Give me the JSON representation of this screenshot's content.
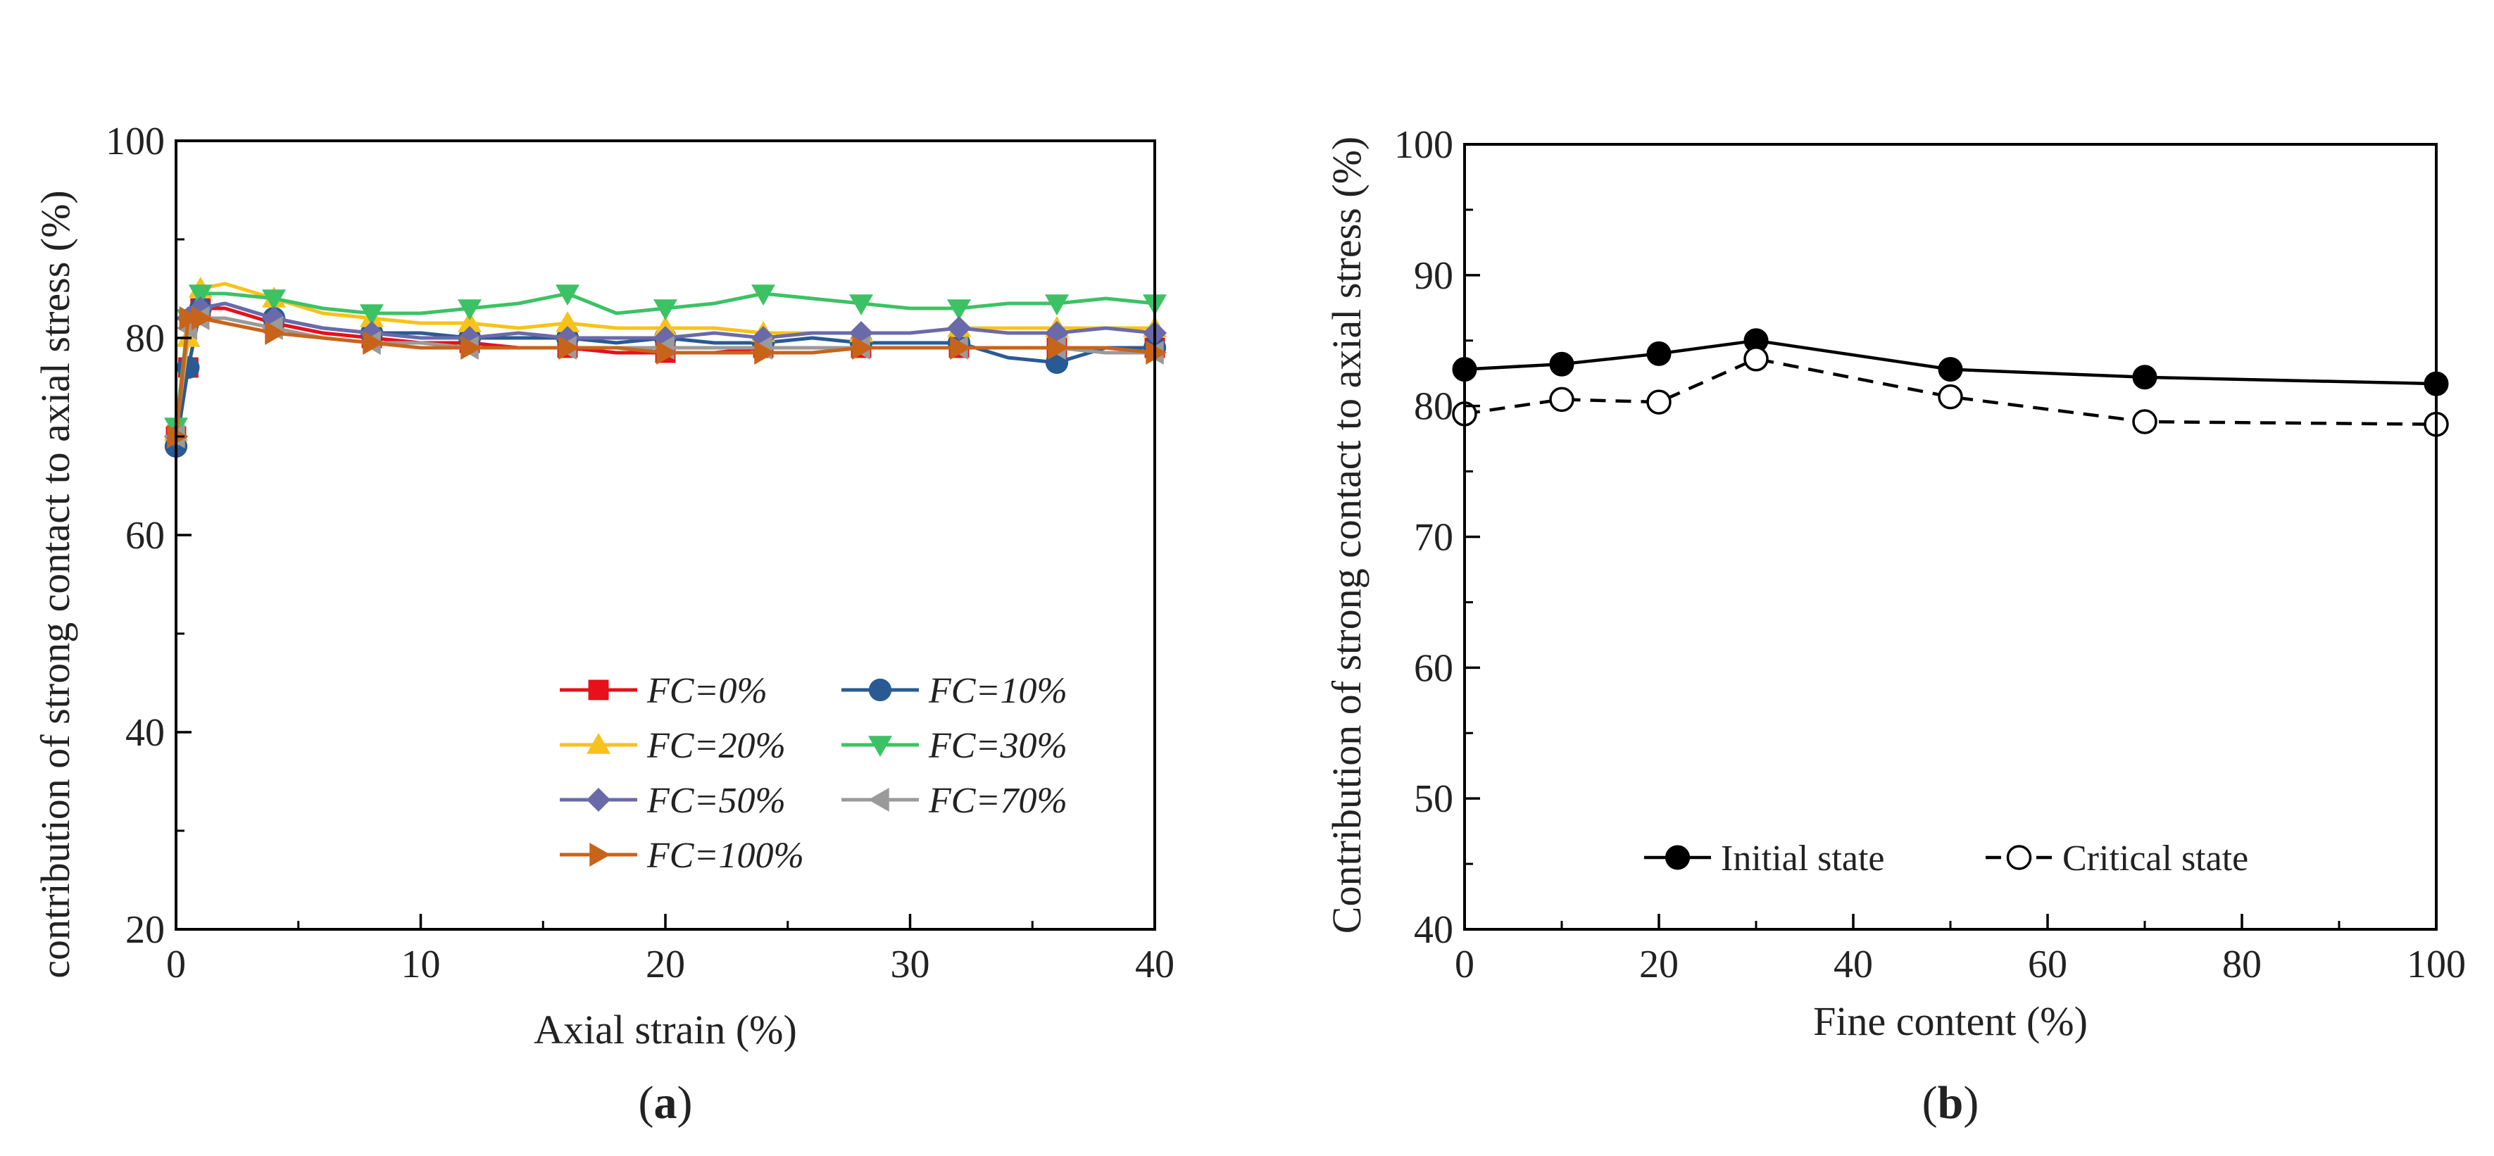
{
  "chart_data": [
    {
      "type": "line",
      "panel_label": "a",
      "xlabel": "Axial strain (%)",
      "ylabel": "contribution of strong contact to axial stress (%)",
      "xlim": [
        0,
        40
      ],
      "ylim": [
        20,
        100
      ],
      "xticks": [
        0,
        10,
        20,
        30,
        40
      ],
      "yticks": [
        20,
        40,
        60,
        80,
        100
      ],
      "grid": false,
      "legend_position": "bottom-right",
      "series": [
        {
          "name": "FC=0%",
          "color": "#e8101a",
          "marker": "square",
          "x": [
            0,
            0.5,
            1,
            2,
            4,
            6,
            8,
            10,
            12,
            14,
            16,
            18,
            20,
            22,
            24,
            26,
            28,
            30,
            32,
            34,
            36,
            38,
            40
          ],
          "y": [
            70,
            77,
            83,
            83,
            81.5,
            80.5,
            80,
            79.5,
            79.5,
            79,
            79,
            78.5,
            78.5,
            78.5,
            79,
            79,
            79,
            79,
            79,
            79,
            79,
            79,
            79
          ]
        },
        {
          "name": "FC=10%",
          "color": "#2a5a94",
          "marker": "circle",
          "x": [
            0,
            0.5,
            1,
            2,
            4,
            6,
            8,
            10,
            12,
            14,
            16,
            18,
            20,
            22,
            24,
            26,
            28,
            30,
            32,
            34,
            36,
            38,
            40
          ],
          "y": [
            69,
            77,
            83,
            83.5,
            82,
            81,
            80.5,
            80.5,
            80,
            80,
            80,
            79.5,
            80,
            79.5,
            79.5,
            80,
            79.5,
            79.5,
            79.5,
            78,
            77.5,
            79,
            79
          ]
        },
        {
          "name": "FC=20%",
          "color": "#f8c21a",
          "marker": "triangle-up",
          "x": [
            0,
            0.5,
            1,
            2,
            4,
            6,
            8,
            10,
            12,
            14,
            16,
            18,
            20,
            22,
            24,
            26,
            28,
            30,
            32,
            34,
            36,
            38,
            40
          ],
          "y": [
            70.5,
            80,
            85,
            85.5,
            84,
            82.5,
            82,
            81.5,
            81.5,
            81,
            81.5,
            81,
            81,
            81,
            80.5,
            80.5,
            80.5,
            80.5,
            81,
            81,
            81,
            81,
            81
          ]
        },
        {
          "name": "FC=30%",
          "color": "#3cc264",
          "marker": "triangle-down",
          "x": [
            0,
            0.5,
            1,
            2,
            4,
            6,
            8,
            10,
            12,
            14,
            16,
            18,
            20,
            22,
            24,
            26,
            28,
            30,
            32,
            34,
            36,
            38,
            40
          ],
          "y": [
            71,
            82,
            84.5,
            84.5,
            84,
            83,
            82.5,
            82.5,
            83,
            83.5,
            84.5,
            82.5,
            83,
            83.5,
            84.5,
            84,
            83.5,
            83,
            83,
            83.5,
            83.5,
            84,
            83.5
          ]
        },
        {
          "name": "FC=50%",
          "color": "#6a6aaa",
          "marker": "diamond",
          "x": [
            0,
            0.5,
            1,
            2,
            4,
            6,
            8,
            10,
            12,
            14,
            16,
            18,
            20,
            22,
            24,
            26,
            28,
            30,
            32,
            34,
            36,
            38,
            40
          ],
          "y": [
            70,
            82,
            83,
            83.5,
            82,
            81,
            80.5,
            80,
            80,
            80.5,
            80,
            80,
            80,
            80.5,
            80,
            80.5,
            80.5,
            80.5,
            81,
            80.5,
            80.5,
            81,
            80.5
          ]
        },
        {
          "name": "FC=70%",
          "color": "#9a9a9a",
          "marker": "triangle-left",
          "x": [
            0,
            0.5,
            1,
            2,
            4,
            6,
            8,
            10,
            12,
            14,
            16,
            18,
            20,
            22,
            24,
            26,
            28,
            30,
            32,
            34,
            36,
            38,
            40
          ],
          "y": [
            70,
            81,
            82,
            82,
            81,
            80,
            79.5,
            79.5,
            79,
            79,
            79,
            79,
            79,
            79,
            79,
            79,
            79,
            79,
            79,
            79,
            79,
            78.5,
            78.5
          ]
        },
        {
          "name": "FC=100%",
          "color": "#c8641a",
          "marker": "triangle-right",
          "x": [
            0,
            0.5,
            1,
            2,
            4,
            6,
            8,
            10,
            12,
            14,
            16,
            18,
            20,
            22,
            24,
            26,
            28,
            30,
            32,
            34,
            36,
            38,
            40
          ],
          "y": [
            70,
            82,
            82,
            81.5,
            80.5,
            80,
            79.5,
            79,
            79,
            79,
            79,
            79,
            78.5,
            78.5,
            78.5,
            78.5,
            79,
            79,
            79,
            79,
            79,
            79,
            78.5
          ]
        }
      ]
    },
    {
      "type": "line",
      "panel_label": "b",
      "xlabel": "Fine content (%)",
      "ylabel": "Contribution of strong contact to axial stress (%)",
      "xlim": [
        0,
        100
      ],
      "ylim": [
        40,
        100
      ],
      "xticks": [
        0,
        20,
        40,
        60,
        80,
        100
      ],
      "yticks": [
        40,
        50,
        60,
        70,
        80,
        90,
        100
      ],
      "grid": false,
      "legend_position": "bottom",
      "series": [
        {
          "name": "Initial state",
          "color": "#000000",
          "marker": "filled-circle",
          "line": "solid",
          "x": [
            0,
            10,
            20,
            30,
            50,
            70,
            100
          ],
          "y": [
            82.8,
            83.2,
            84.0,
            85.0,
            82.8,
            82.2,
            81.7
          ]
        },
        {
          "name": "Critical state",
          "color": "#000000",
          "marker": "open-circle",
          "line": "dashed",
          "x": [
            0,
            10,
            20,
            30,
            50,
            70,
            100
          ],
          "y": [
            79.4,
            80.5,
            80.3,
            83.6,
            80.7,
            78.8,
            78.6
          ]
        }
      ]
    }
  ]
}
